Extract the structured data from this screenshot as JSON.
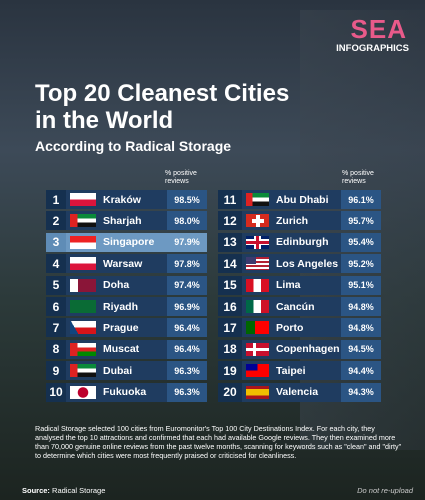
{
  "header": {
    "brand_top": "SEA",
    "brand_bottom": "INFOGRAPHICS",
    "title": "Top 20 Cleanest Cities in the World",
    "subtitle": "According to Radical Storage"
  },
  "table": {
    "column_header": "% positive reviews",
    "rows": [
      [
        1,
        "Kraków",
        "98.5%"
      ],
      [
        2,
        "Sharjah",
        "98.0%"
      ],
      [
        3,
        "Singapore",
        "97.9%"
      ],
      [
        4,
        "Warsaw",
        "97.8%"
      ],
      [
        5,
        "Doha",
        "97.4%"
      ],
      [
        6,
        "Riyadh",
        "96.9%"
      ],
      [
        7,
        "Prague",
        "96.4%"
      ],
      [
        8,
        "Muscat",
        "96.4%"
      ],
      [
        9,
        "Dubai",
        "96.3%"
      ],
      [
        10,
        "Fukuoka",
        "96.3%"
      ],
      [
        11,
        "Abu Dhabi",
        "96.1%"
      ],
      [
        12,
        "Zurich",
        "95.7%"
      ],
      [
        13,
        "Edinburgh",
        "95.4%"
      ],
      [
        14,
        "Los Angeles",
        "95.2%"
      ],
      [
        15,
        "Lima",
        "95.1%"
      ],
      [
        16,
        "Cancún",
        "94.8%"
      ],
      [
        17,
        "Porto",
        "94.8%"
      ],
      [
        18,
        "Copenhagen",
        "94.5%"
      ],
      [
        19,
        "Taipei",
        "94.4%"
      ],
      [
        20,
        "Valencia",
        "94.3%"
      ]
    ]
  },
  "footer": {
    "note": "Radical Storage selected 100 cities from Euromonitor's Top 100 City Destinations Index. For each city, they analysed the top 10 attractions and confirmed that each had available Google reviews. They then examined more than 70,000 genuine online reviews from the past twelve months, scanning for keywords such as \"clean\" and \"dirty\" to determine which cities were most frequently praised or criticised for cleanliness.",
    "source_label": "Source:",
    "source": "Radical Storage",
    "disclaimer": "Do not re-upload"
  }
}
